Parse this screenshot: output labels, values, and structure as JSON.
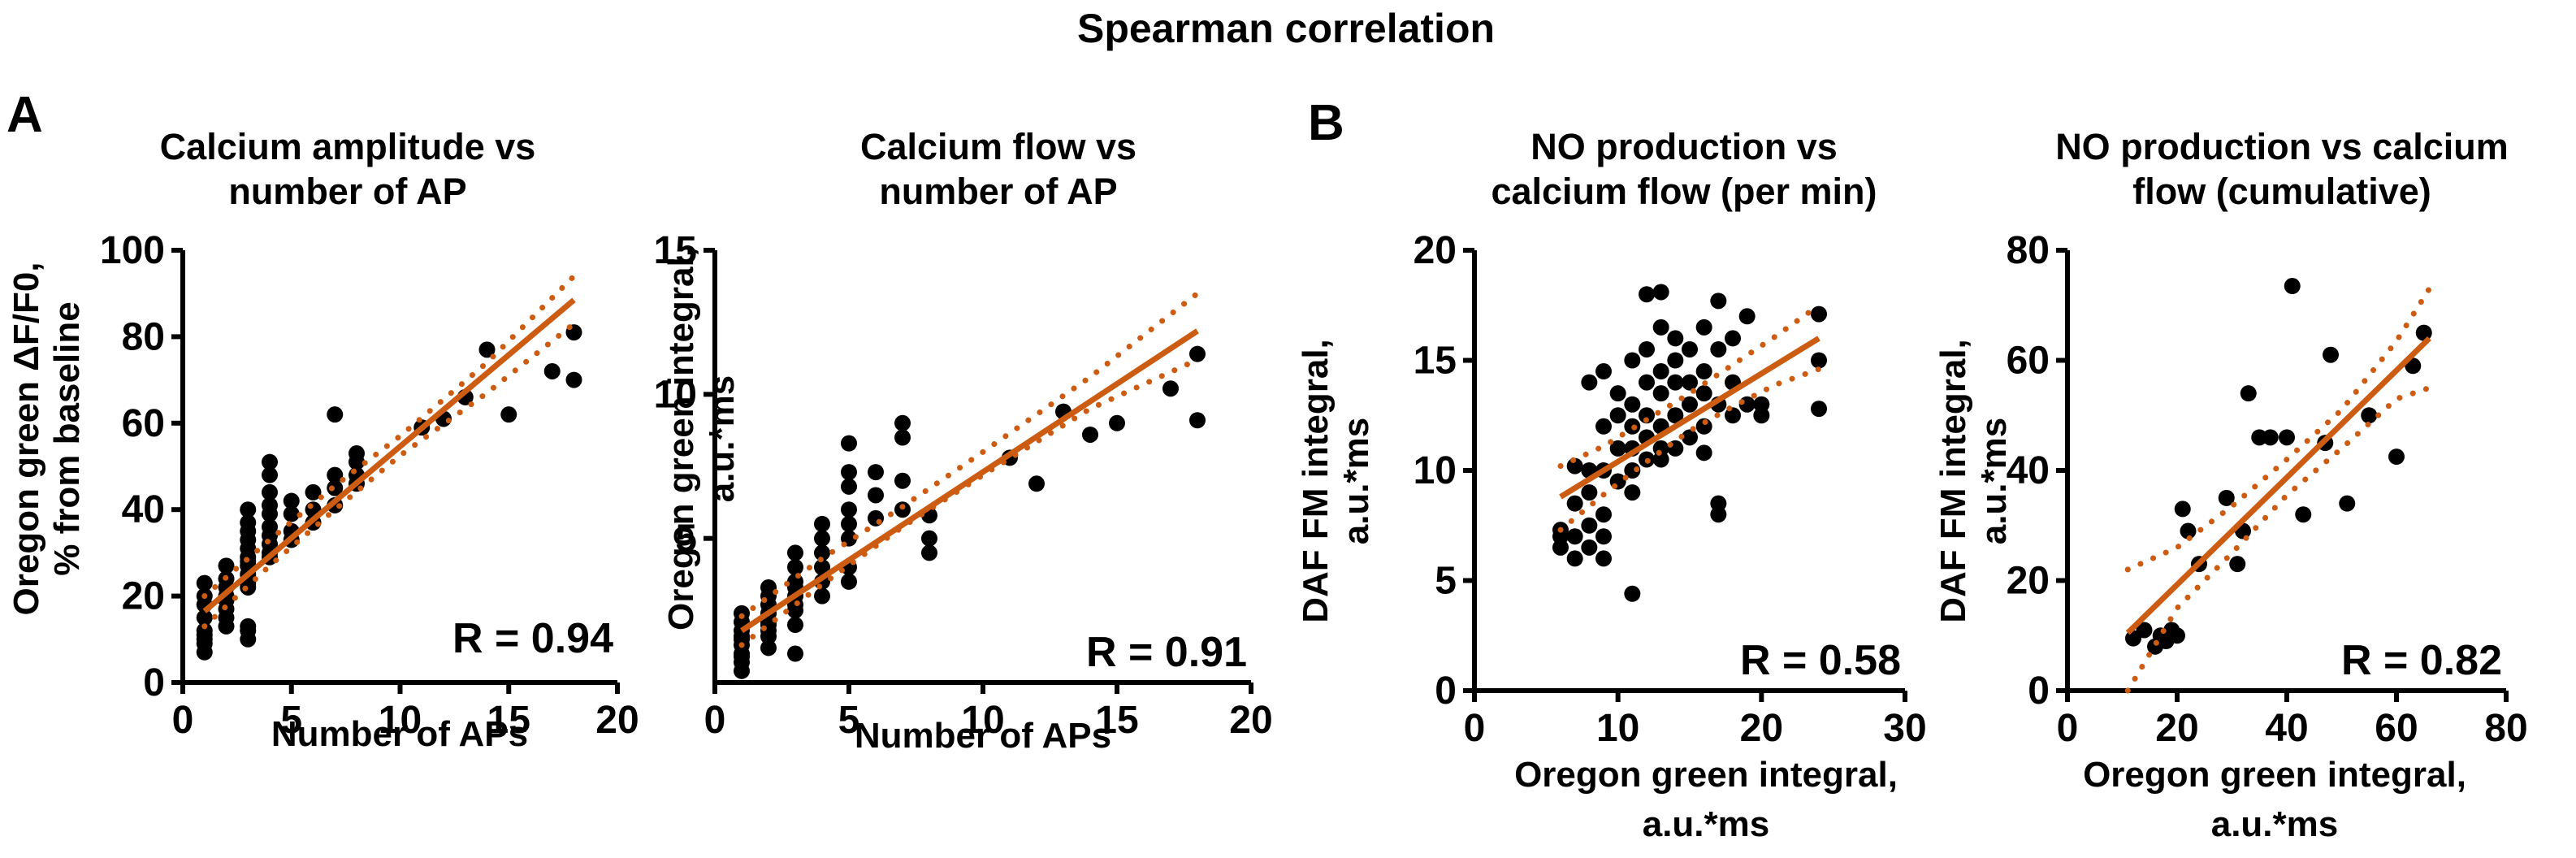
{
  "figure_title": "Spearman correlation",
  "panel_labels": [
    "A",
    "B"
  ],
  "colors": {
    "fit": "#cc5c12",
    "ci": "#cc5c12",
    "point": "#000000"
  },
  "chart_data": [
    {
      "type": "scatter",
      "title": "Calcium amplitude vs number of AP",
      "xlabel": "Number of APs",
      "ylabel": "Oregon green ΔF/F0, % from baseline",
      "xlim": [
        0,
        20
      ],
      "ylim": [
        0,
        100
      ],
      "xticks": [
        0,
        5,
        10,
        15,
        20
      ],
      "yticks": [
        0,
        20,
        40,
        60,
        80,
        100
      ],
      "r_label": "R = 0.94",
      "fit": {
        "x": [
          1,
          18
        ],
        "y": [
          16.5,
          88.5
        ]
      },
      "ci_upper": {
        "x": [
          1,
          4,
          7,
          10,
          14,
          18
        ],
        "y": [
          20,
          33,
          45.5,
          57,
          74,
          94
        ]
      },
      "ci_lower": {
        "x": [
          1,
          4,
          7,
          10,
          14,
          18
        ],
        "y": [
          13,
          27,
          40,
          52.5,
          67,
          83
        ]
      },
      "points": {
        "x": [
          1,
          1,
          1,
          1,
          1,
          1,
          1,
          1,
          1,
          2,
          2,
          2,
          2,
          2,
          2,
          2,
          2,
          3,
          3,
          3,
          3,
          3,
          3,
          3,
          3,
          3,
          3,
          3,
          3,
          3,
          3,
          4,
          4,
          4,
          4,
          4,
          4,
          4,
          4,
          4,
          4,
          5,
          5,
          5,
          5,
          6,
          6,
          6,
          7,
          7,
          7,
          7,
          8,
          8,
          8,
          8,
          11,
          12,
          13,
          14,
          15,
          17,
          18,
          18
        ],
        "y": [
          7,
          9,
          10,
          12,
          15,
          18,
          20,
          23,
          11,
          13,
          17,
          20,
          22,
          24,
          27,
          19,
          15,
          10,
          13,
          23,
          25,
          27,
          29,
          31,
          33,
          35,
          37,
          40,
          22,
          12,
          28,
          30,
          32,
          34,
          36,
          39,
          41,
          44,
          48,
          51,
          29,
          33,
          35,
          39,
          42,
          37,
          40,
          44,
          41,
          45,
          48,
          62,
          46,
          48,
          51,
          53,
          59,
          61,
          66,
          77,
          62,
          72,
          70,
          81
        ]
      }
    },
    {
      "type": "scatter",
      "title": "Calcium flow vs number of AP",
      "xlabel": "Number of APs",
      "ylabel": "Oregon green integral, a.u.*ms",
      "xlim": [
        0,
        20
      ],
      "ylim": [
        0,
        15
      ],
      "xticks": [
        0,
        5,
        10,
        15,
        20
      ],
      "yticks": [
        5,
        10,
        15
      ],
      "r_label": "R = 0.91",
      "fit": {
        "x": [
          1,
          18
        ],
        "y": [
          1.8,
          12.2
        ]
      },
      "ci_upper": {
        "x": [
          1,
          4,
          7,
          10,
          14,
          18
        ],
        "y": [
          2.3,
          4.3,
          6.1,
          8.0,
          10.6,
          13.5
        ]
      },
      "ci_lower": {
        "x": [
          1,
          4,
          7,
          10,
          14,
          18
        ],
        "y": [
          1.3,
          3.4,
          5.4,
          7.2,
          9.5,
          11.2
        ]
      },
      "points": {
        "x": [
          1,
          1,
          1,
          1,
          1,
          1,
          1,
          1,
          1,
          1,
          2,
          2,
          2,
          2,
          2,
          2,
          2,
          2,
          2,
          3,
          3,
          3,
          3,
          3,
          3,
          3,
          3,
          3,
          4,
          4,
          4,
          4,
          4,
          4,
          5,
          5,
          5,
          5,
          5,
          5,
          5,
          5,
          6,
          6,
          6,
          7,
          7,
          7,
          7,
          8,
          8,
          8,
          11,
          12,
          13,
          14,
          15,
          17,
          18,
          18
        ],
        "y": [
          0.4,
          0.7,
          1.0,
          1.3,
          1.5,
          1.8,
          2.1,
          2.4,
          0.9,
          1.6,
          1.2,
          1.6,
          2.0,
          2.4,
          2.7,
          3.0,
          3.3,
          2.1,
          1.8,
          1.0,
          2.0,
          2.5,
          3.0,
          3.5,
          4.0,
          4.5,
          2.7,
          3.3,
          3.0,
          3.5,
          4.0,
          4.5,
          5.0,
          5.5,
          3.5,
          4.0,
          5.0,
          5.5,
          6.0,
          6.8,
          7.3,
          8.3,
          5.7,
          6.5,
          7.3,
          6.0,
          7.0,
          8.5,
          9.0,
          4.5,
          5.0,
          5.8,
          7.8,
          6.9,
          9.4,
          8.6,
          9.0,
          10.2,
          9.1,
          11.4
        ]
      }
    },
    {
      "type": "scatter",
      "title": "NO production vs calcium flow (per min)",
      "xlabel": "Oregon green integral, a.u.*ms",
      "ylabel": "DAF FM integral, a.u.*ms",
      "xlim": [
        0,
        30
      ],
      "ylim": [
        0,
        20
      ],
      "xticks": [
        0,
        10,
        20,
        30
      ],
      "yticks": [
        0,
        5,
        10,
        15,
        20
      ],
      "r_label": "R = 0.58",
      "fit": {
        "x": [
          6,
          24
        ],
        "y": [
          8.8,
          16.0
        ]
      },
      "ci_upper": {
        "x": [
          6,
          9,
          12,
          15,
          18,
          21,
          24
        ],
        "y": [
          10.2,
          11.1,
          12.3,
          13.5,
          14.8,
          16.1,
          17.5
        ]
      },
      "ci_lower": {
        "x": [
          6,
          9,
          12,
          15,
          18,
          21,
          24
        ],
        "y": [
          7.3,
          8.9,
          10.4,
          11.8,
          12.9,
          13.9,
          14.6
        ]
      },
      "points": {
        "x": [
          6,
          6,
          6,
          7,
          7,
          7,
          7,
          8,
          8,
          8,
          8,
          8,
          9,
          9,
          9,
          9,
          9,
          10,
          10,
          10,
          10,
          11,
          11,
          11,
          11,
          11,
          11,
          12,
          12,
          12,
          12,
          12,
          12,
          13,
          13,
          13,
          13,
          13,
          13,
          14,
          14,
          14,
          14,
          14,
          15,
          15,
          15,
          15,
          16,
          16,
          16,
          16,
          17,
          17,
          17,
          17,
          17,
          18,
          18,
          18,
          19,
          19,
          20,
          20,
          24,
          24,
          24,
          11,
          9,
          13,
          16
        ],
        "y": [
          6.5,
          7.0,
          7.3,
          6.0,
          7.0,
          8.5,
          10.2,
          6.5,
          7.5,
          9.0,
          10.0,
          14.0,
          6.0,
          7.0,
          10.0,
          12.0,
          14.5,
          9.5,
          11.0,
          12.5,
          13.5,
          4.4,
          10.0,
          11.0,
          12.0,
          13.0,
          15.0,
          10.5,
          11.5,
          12.5,
          14.0,
          15.5,
          18.0,
          11.0,
          12.0,
          13.5,
          14.5,
          16.5,
          18.1,
          11.0,
          12.5,
          14.0,
          15.0,
          16.0,
          11.5,
          13.0,
          14.0,
          15.5,
          12.0,
          13.5,
          14.5,
          16.5,
          8.0,
          8.5,
          13.0,
          15.5,
          17.7,
          12.5,
          14.0,
          16.0,
          13.0,
          17.0,
          12.5,
          13.0,
          12.8,
          15.0,
          17.1,
          9.0,
          8.0,
          10.5,
          10.8
        ]
      }
    },
    {
      "type": "scatter",
      "title": "NO production vs calcium flow (cumulative)",
      "xlabel": "Oregon green integral, a.u.*ms",
      "ylabel": "DAF FM integral, a.u.*ms",
      "xlim": [
        0,
        80
      ],
      "ylim": [
        0,
        80
      ],
      "xticks": [
        0,
        20,
        40,
        60,
        80
      ],
      "yticks": [
        0,
        20,
        40,
        60,
        80
      ],
      "r_label": "R = 0.82",
      "fit": {
        "x": [
          11,
          66
        ],
        "y": [
          10.5,
          64
        ]
      },
      "ci_upper": {
        "x": [
          11,
          20,
          30,
          40,
          50,
          60,
          66
        ],
        "y": [
          22,
          26,
          33.5,
          42,
          51,
          63.5,
          73
        ]
      },
      "ci_lower": {
        "x": [
          11,
          20,
          30,
          40,
          50,
          60,
          66
        ],
        "y": [
          0,
          15,
          25,
          35.5,
          44,
          53,
          55
        ]
      },
      "points": {
        "x": [
          12,
          14,
          16,
          17,
          18,
          19,
          20,
          21,
          22,
          24,
          29,
          31,
          32,
          33,
          35,
          37,
          40,
          41,
          43,
          47,
          48,
          51,
          55,
          60,
          63,
          65
        ],
        "y": [
          9.5,
          11,
          8,
          10,
          9,
          11,
          10,
          33,
          29,
          23,
          35,
          23,
          29,
          54,
          46,
          46,
          46,
          73.5,
          32,
          45,
          61,
          34,
          50,
          42.5,
          59,
          65
        ]
      }
    }
  ]
}
